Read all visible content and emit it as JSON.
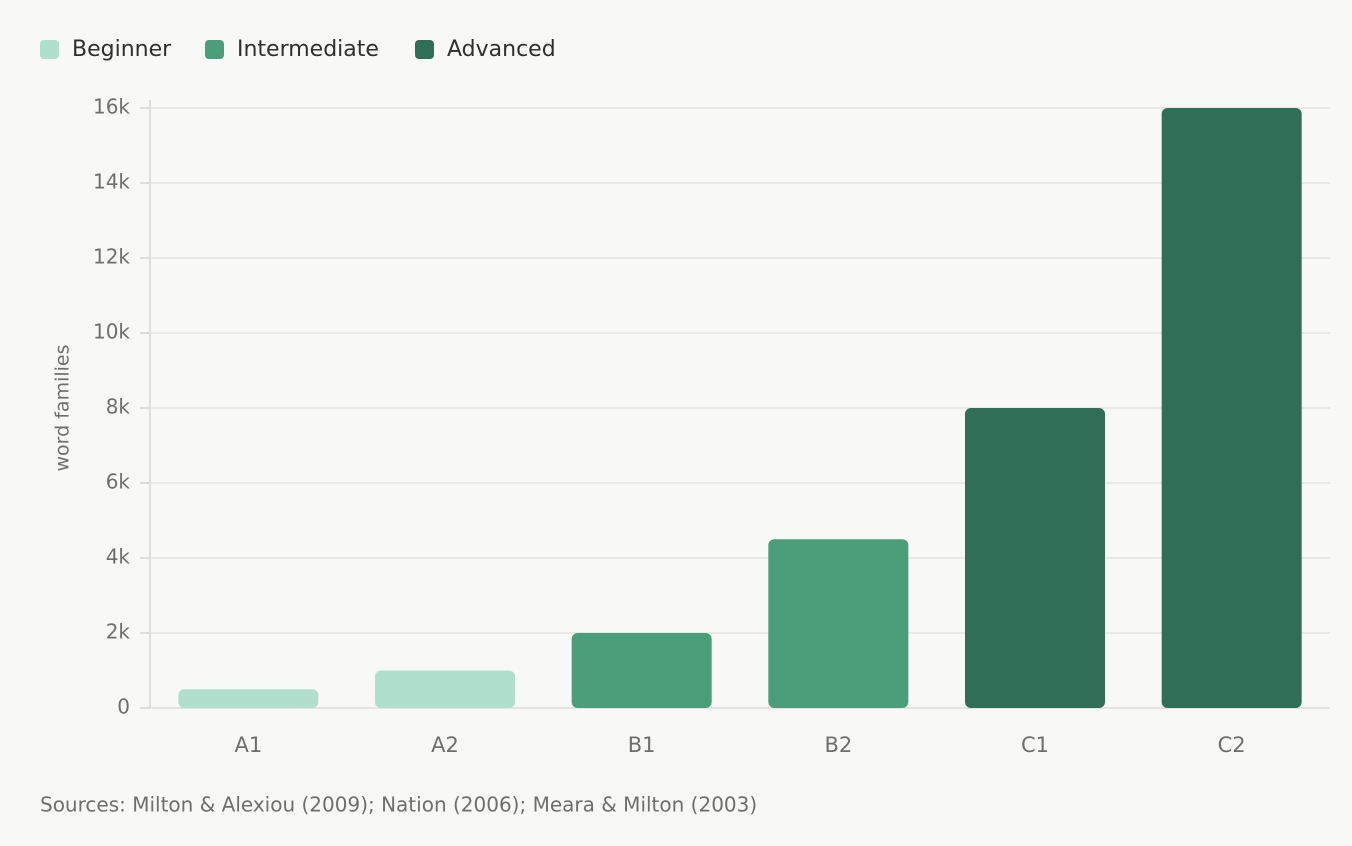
{
  "chart_data": {
    "type": "bar",
    "categories": [
      "A1",
      "A2",
      "B1",
      "B2",
      "C1",
      "C2"
    ],
    "series": [
      {
        "name": "Beginner",
        "color": "#b0e0cc",
        "values": [
          500,
          1000,
          null,
          null,
          null,
          null
        ]
      },
      {
        "name": "Intermediate",
        "color": "#4a9e7a",
        "values": [
          null,
          null,
          2000,
          4500,
          null,
          null
        ]
      },
      {
        "name": "Advanced",
        "color": "#316e57",
        "values": [
          null,
          null,
          null,
          null,
          8000,
          16000
        ]
      }
    ],
    "y_label": "word families",
    "ylim": [
      0,
      16000
    ],
    "yticks": [
      0,
      {
        "value": 2000,
        "label": "2k"
      },
      {
        "value": 4000,
        "label": "4k"
      },
      {
        "value": 6000,
        "label": "6k"
      },
      {
        "value": 8000,
        "label": "8k"
      },
      {
        "value": 10000,
        "label": "10k"
      },
      {
        "value": 12000,
        "label": "12k"
      },
      {
        "value": 14000,
        "label": "14k"
      },
      {
        "value": 16000,
        "label": "16k"
      }
    ],
    "grid": true,
    "source": "Sources: Milton & Alexiou (2009); Nation (2006); Meara & Milton (2003)"
  }
}
